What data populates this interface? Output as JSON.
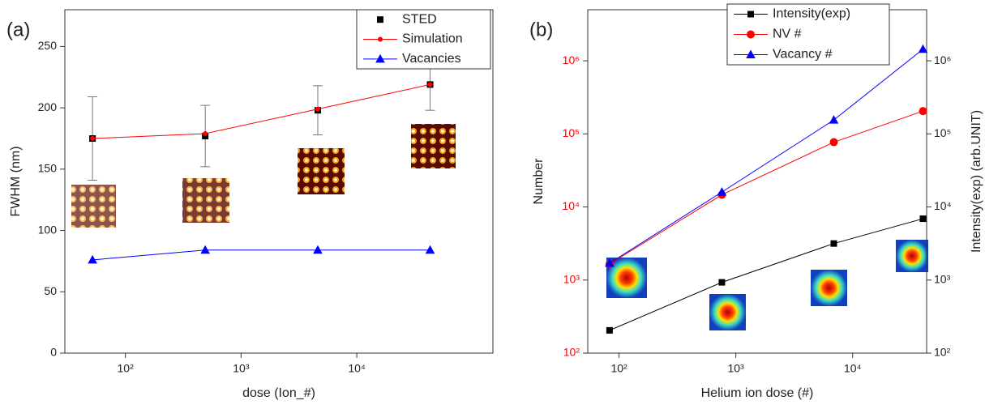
{
  "chart_data": [
    {
      "type": "line",
      "panel_label": "(a)",
      "xlabel": "dose (Ion_#)",
      "ylabel": "FWHM (nm)",
      "xscale": "log",
      "x": [
        52,
        490,
        4600,
        43000
      ],
      "xlim": [
        30,
        150000
      ],
      "xticks": [
        {
          "value": 100,
          "label": "10²"
        },
        {
          "value": 1000,
          "label": "10³"
        },
        {
          "value": 10000,
          "label": "10⁴"
        }
      ],
      "ylim": [
        0,
        280
      ],
      "yticks": [
        0,
        50,
        100,
        150,
        200,
        250
      ],
      "legend": "upper right",
      "series": [
        {
          "name": "STED",
          "color": "#000000",
          "marker": "square",
          "marker_size": 8,
          "show_line": false,
          "values": [
            175,
            177,
            198,
            219
          ],
          "errors": [
            34,
            25,
            20,
            21
          ]
        },
        {
          "name": "Simulation",
          "color": "#ff0000",
          "marker": "circle",
          "marker_size": 3,
          "show_line": true,
          "values": [
            175,
            179,
            199,
            219
          ]
        },
        {
          "name": "Vacancies",
          "color": "#0000ff",
          "marker": "triangle",
          "marker_size": 10,
          "show_line": true,
          "values": [
            76,
            84,
            84,
            84
          ]
        }
      ]
    },
    {
      "type": "line",
      "panel_label": "(b)",
      "xlabel": "Helium ion dose (#)",
      "ylabel": "Number",
      "y2label": "Intensity(exp) (arb.UNIT)",
      "xscale": "log",
      "yscale": "log",
      "x": [
        83,
        760,
        6900,
        40000
      ],
      "xlim": [
        54,
        43000
      ],
      "xticks": [
        {
          "value": 100,
          "label": "10²"
        },
        {
          "value": 1000,
          "label": "10³"
        },
        {
          "value": 10000,
          "label": "10⁴"
        }
      ],
      "ylim": [
        100,
        5000000
      ],
      "ytick_color": "#ff0000",
      "yticks": [
        {
          "value": 100,
          "label": "10²"
        },
        {
          "value": 1000,
          "label": "10³"
        },
        {
          "value": 10000,
          "label": "10⁴"
        },
        {
          "value": 100000,
          "label": "10⁵"
        },
        {
          "value": 1000000,
          "label": "10⁶"
        }
      ],
      "y2lim": [
        100,
        5000000
      ],
      "y2ticks": [
        {
          "value": 100,
          "label": "10²"
        },
        {
          "value": 1000,
          "label": "10³"
        },
        {
          "value": 10000,
          "label": "10⁴"
        },
        {
          "value": 100000,
          "label": "10⁵"
        },
        {
          "value": 1000000,
          "label": "10⁶"
        }
      ],
      "legend": "upper right",
      "series": [
        {
          "name": "Intensity(exp)",
          "color": "#000000",
          "marker": "square",
          "marker_size": 8,
          "show_line": true,
          "axis": "y2",
          "values": [
            205,
            930,
            3160,
            6900
          ]
        },
        {
          "name": "NV #",
          "color": "#ff0000",
          "marker": "circle",
          "marker_size": 5,
          "show_line": true,
          "values": [
            1660,
            14700,
            77000,
            205000
          ]
        },
        {
          "name": "Vacancy #",
          "color": "#0000ff",
          "marker": "triangle",
          "marker_size": 10,
          "show_line": true,
          "values": [
            1700,
            16000,
            155000,
            1440000
          ]
        }
      ]
    }
  ]
}
